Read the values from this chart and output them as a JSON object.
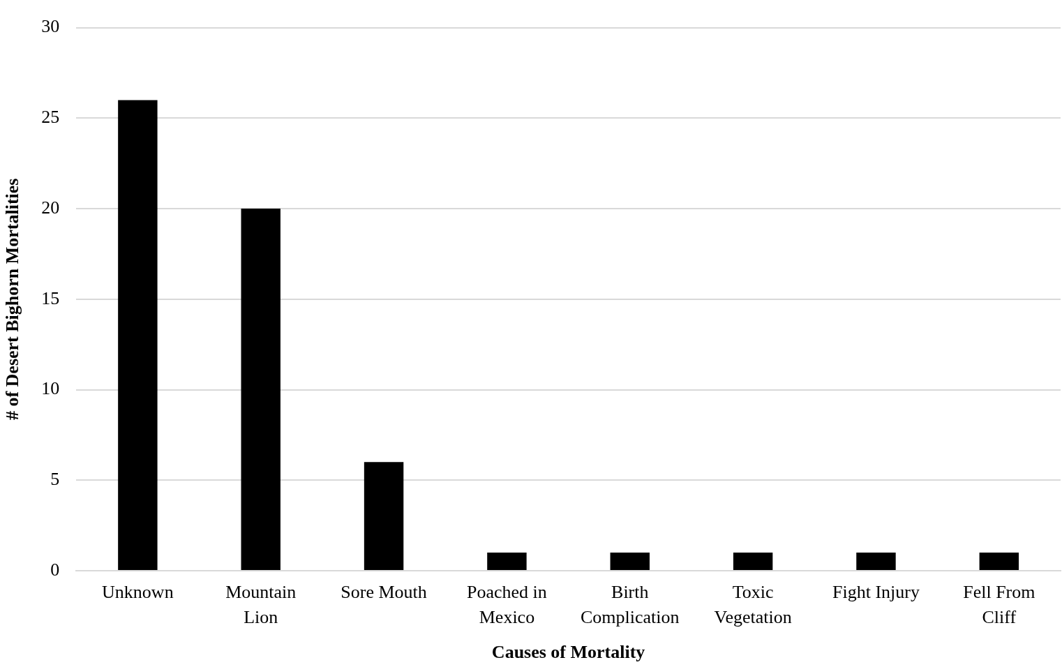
{
  "chart_data": {
    "type": "bar",
    "xlabel": "Causes of Mortality",
    "ylabel": "# of Desert Bighorn Mortalities",
    "categories": [
      "Unknown",
      "Mountain Lion",
      "Sore Mouth",
      "Poached in Mexico",
      "Birth Complication",
      "Toxic Vegetation",
      "Fight Injury",
      "Fell From Cliff"
    ],
    "values": [
      26,
      20,
      6,
      1,
      1,
      1,
      1,
      1
    ],
    "color": "#000000",
    "ylim": [
      0,
      30
    ],
    "yticks": [
      0,
      5,
      10,
      15,
      20,
      25,
      30
    ],
    "grid": "y",
    "legend": false
  }
}
